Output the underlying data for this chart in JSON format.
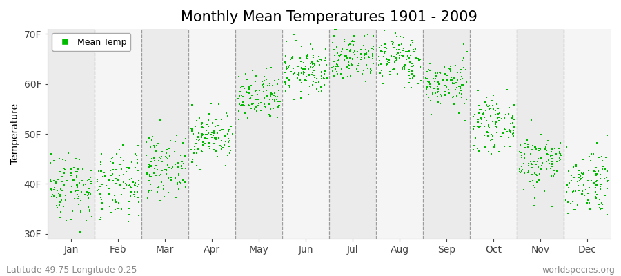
{
  "title": "Monthly Mean Temperatures 1901 - 2009",
  "ylabel": "Temperature",
  "yticks": [
    30,
    40,
    50,
    60,
    70
  ],
  "ytick_labels": [
    "30F",
    "40F",
    "50F",
    "60F",
    "70F"
  ],
  "ylim": [
    29,
    71
  ],
  "months": [
    "Jan",
    "Feb",
    "Mar",
    "Apr",
    "May",
    "Jun",
    "Jul",
    "Aug",
    "Sep",
    "Oct",
    "Nov",
    "Dec"
  ],
  "month_means_F": [
    39.5,
    39.5,
    43.5,
    49.5,
    57.0,
    62.5,
    65.5,
    65.0,
    60.0,
    52.0,
    44.5,
    40.5
  ],
  "month_stds_F": [
    3.5,
    3.5,
    3.0,
    2.5,
    2.5,
    2.5,
    2.5,
    2.5,
    2.5,
    2.5,
    3.0,
    3.5
  ],
  "n_years": 109,
  "dot_color": "#00bb00",
  "dot_size": 3,
  "bg_color_odd": "#ebebeb",
  "bg_color_even": "#f5f5f5",
  "dashed_line_color": "#888888",
  "legend_label": "Mean Temp",
  "footer_left": "Latitude 49.75 Longitude 0.25",
  "footer_right": "worldspecies.org",
  "title_fontsize": 15,
  "axis_label_fontsize": 10,
  "tick_fontsize": 10,
  "footer_fontsize": 9,
  "legend_fontsize": 9
}
